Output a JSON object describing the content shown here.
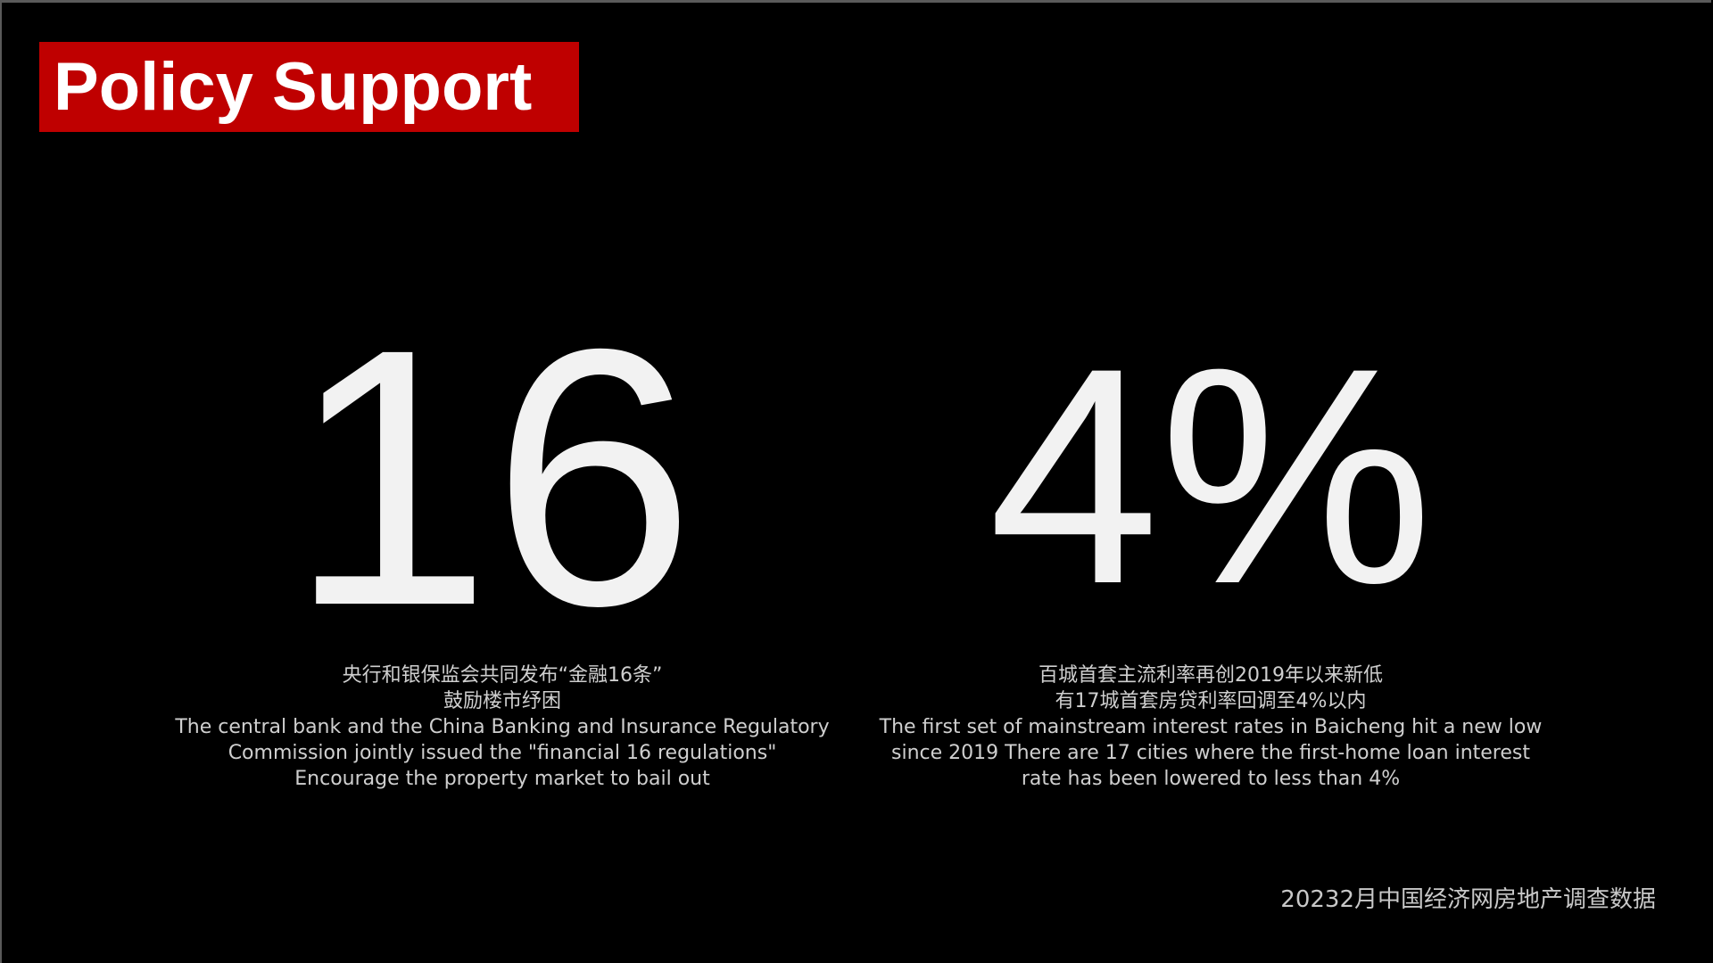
{
  "title": "Policy Support",
  "stats": [
    {
      "value": "16",
      "lines": [
        "央行和银保监会共同发布“金融16条”",
        "鼓励楼市纾困",
        "The central bank and the China Banking and Insurance Regulatory",
        "Commission jointly issued the \"financial 16 regulations\"",
        "Encourage the property market to bail out"
      ]
    },
    {
      "value": "4%",
      "lines": [
        "百城首套主流利率再创2019年以来新低",
        "有17城首套房贷利率回调至4%以内",
        "The first set of mainstream interest rates in Baicheng hit a new low",
        "since 2019 There are 17 cities where the first-home loan interest",
        "rate has been lowered to less than 4%"
      ]
    }
  ],
  "footer": "20232月中国经济网房地产调查数据",
  "colors": {
    "accent": "#bf0000",
    "background": "#000000",
    "text": "#f2f2f2"
  }
}
